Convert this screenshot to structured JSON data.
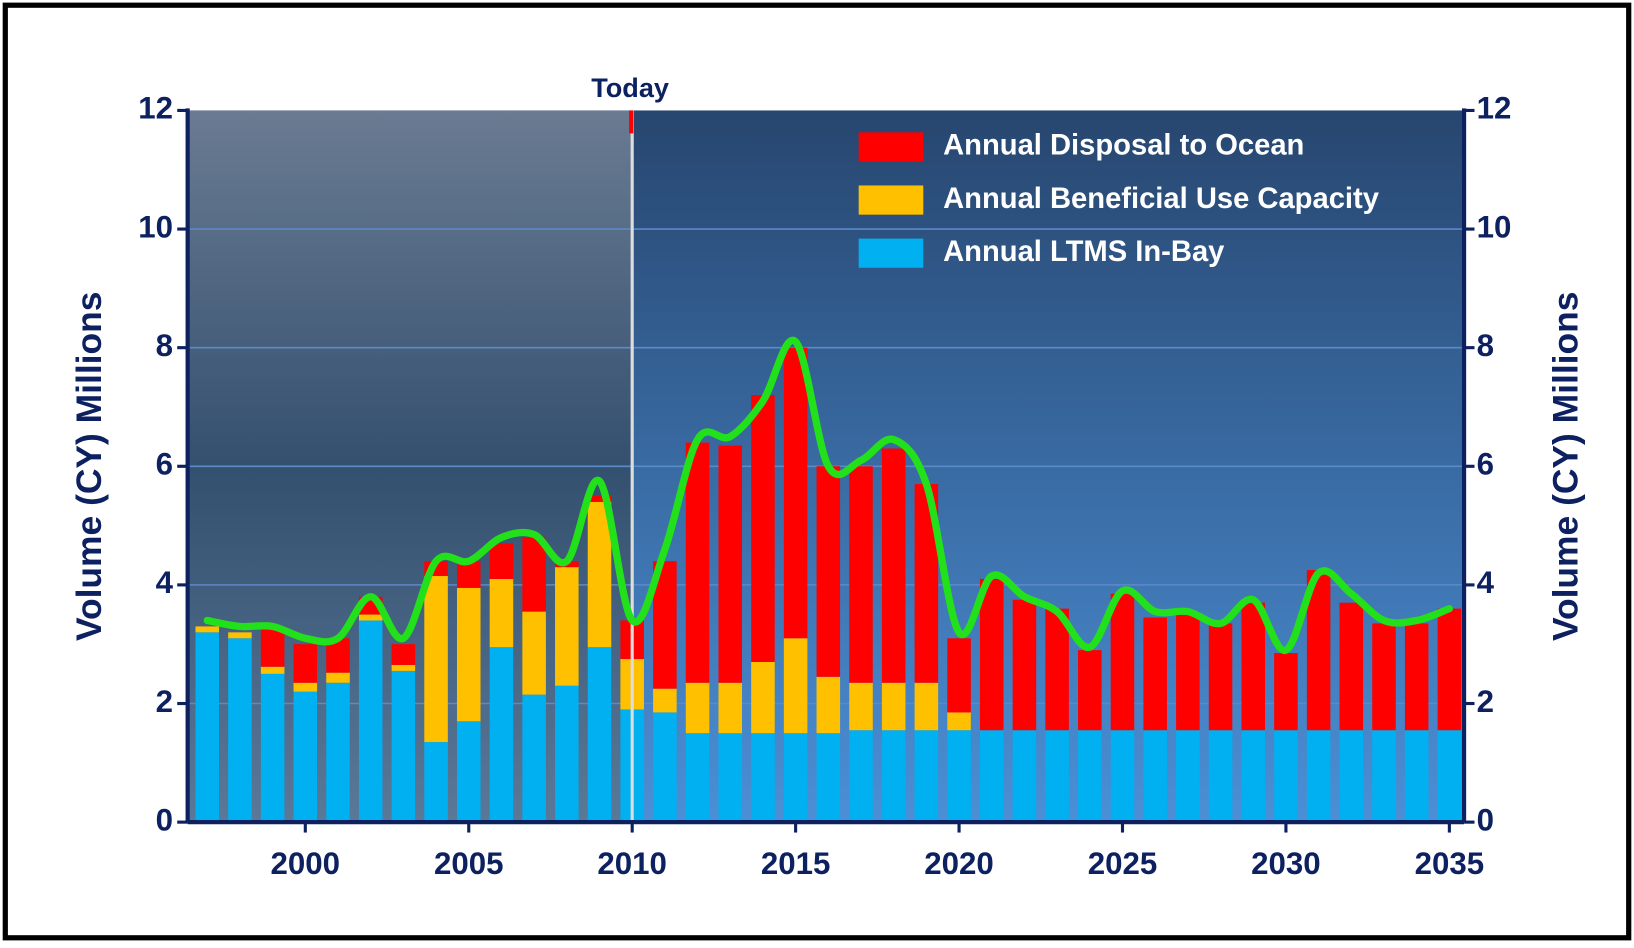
{
  "chart_data": {
    "type": "bar",
    "stacked": true,
    "x": [
      1997,
      1998,
      1999,
      2000,
      2001,
      2002,
      2003,
      2004,
      2005,
      2006,
      2007,
      2008,
      2009,
      2010,
      2011,
      2012,
      2013,
      2014,
      2015,
      2016,
      2017,
      2018,
      2019,
      2020,
      2021,
      2022,
      2023,
      2024,
      2025,
      2026,
      2027,
      2028,
      2029,
      2030,
      2031,
      2032,
      2033,
      2034,
      2035
    ],
    "series": [
      {
        "name": "Annual LTMS In-Bay",
        "color": "#00b0f0",
        "values": [
          3.2,
          3.1,
          2.5,
          2.2,
          2.35,
          3.4,
          2.55,
          1.35,
          1.7,
          2.95,
          2.15,
          2.3,
          2.95,
          1.9,
          1.85,
          1.5,
          1.5,
          1.5,
          1.5,
          1.5,
          1.55,
          1.55,
          1.55,
          1.55,
          1.55,
          1.55,
          1.55,
          1.55,
          1.55,
          1.55,
          1.55,
          1.55,
          1.55,
          1.55,
          1.55,
          1.55,
          1.55,
          1.55,
          1.55
        ]
      },
      {
        "name": "Annual Beneficial Use Capacity",
        "color": "#ffc000",
        "values": [
          0.1,
          0.1,
          0.12,
          0.15,
          0.17,
          0.1,
          0.1,
          2.8,
          2.25,
          1.15,
          1.4,
          2.0,
          2.45,
          0.85,
          0.4,
          0.85,
          0.85,
          1.2,
          1.6,
          0.95,
          0.8,
          0.8,
          0.8,
          0.3,
          0,
          0,
          0,
          0,
          0,
          0,
          0,
          0,
          0,
          0,
          0,
          0,
          0,
          0,
          0
        ]
      },
      {
        "name": "Annual Disposal to Ocean",
        "color": "#ff0000",
        "values": [
          0,
          0,
          0.68,
          0.65,
          0.58,
          0.3,
          0.35,
          0.25,
          0.45,
          0.6,
          1.25,
          0.1,
          0.1,
          0.65,
          2.15,
          4.05,
          4.0,
          4.5,
          4.9,
          3.55,
          3.65,
          3.95,
          3.35,
          1.25,
          2.55,
          2.2,
          2.05,
          1.35,
          2.3,
          1.9,
          2.0,
          1.8,
          2.15,
          1.3,
          2.7,
          2.15,
          1.8,
          1.8,
          2.05
        ]
      }
    ],
    "line": {
      "color": "#22e01a",
      "values": [
        3.4,
        3.3,
        3.3,
        3.1,
        3.1,
        3.8,
        3.1,
        4.4,
        4.4,
        4.8,
        4.85,
        4.4,
        5.75,
        3.4,
        4.6,
        6.45,
        6.5,
        7.1,
        8.1,
        6.0,
        6.1,
        6.45,
        5.7,
        3.2,
        4.15,
        3.8,
        3.55,
        2.95,
        3.9,
        3.55,
        3.55,
        3.35,
        3.75,
        2.9,
        4.2,
        3.85,
        3.4,
        3.4,
        3.6
      ]
    },
    "legend_order": [
      2,
      1,
      0
    ],
    "today": {
      "label": "Today",
      "x": 2010
    },
    "xlim": [
      1996.4,
      2035.45
    ],
    "xticks": [
      2000,
      2005,
      2010,
      2015,
      2020,
      2025,
      2030,
      2035
    ],
    "ylim": [
      0,
      12
    ],
    "yticks": [
      0,
      2,
      4,
      6,
      8,
      10,
      12
    ],
    "y2lim": [
      0,
      12
    ],
    "y2ticks": [
      0,
      2,
      4,
      6,
      8,
      10,
      12
    ],
    "y_label": "Volume (CY) Millions",
    "y2_label": "Volume (CY) Millions",
    "grid": true
  }
}
